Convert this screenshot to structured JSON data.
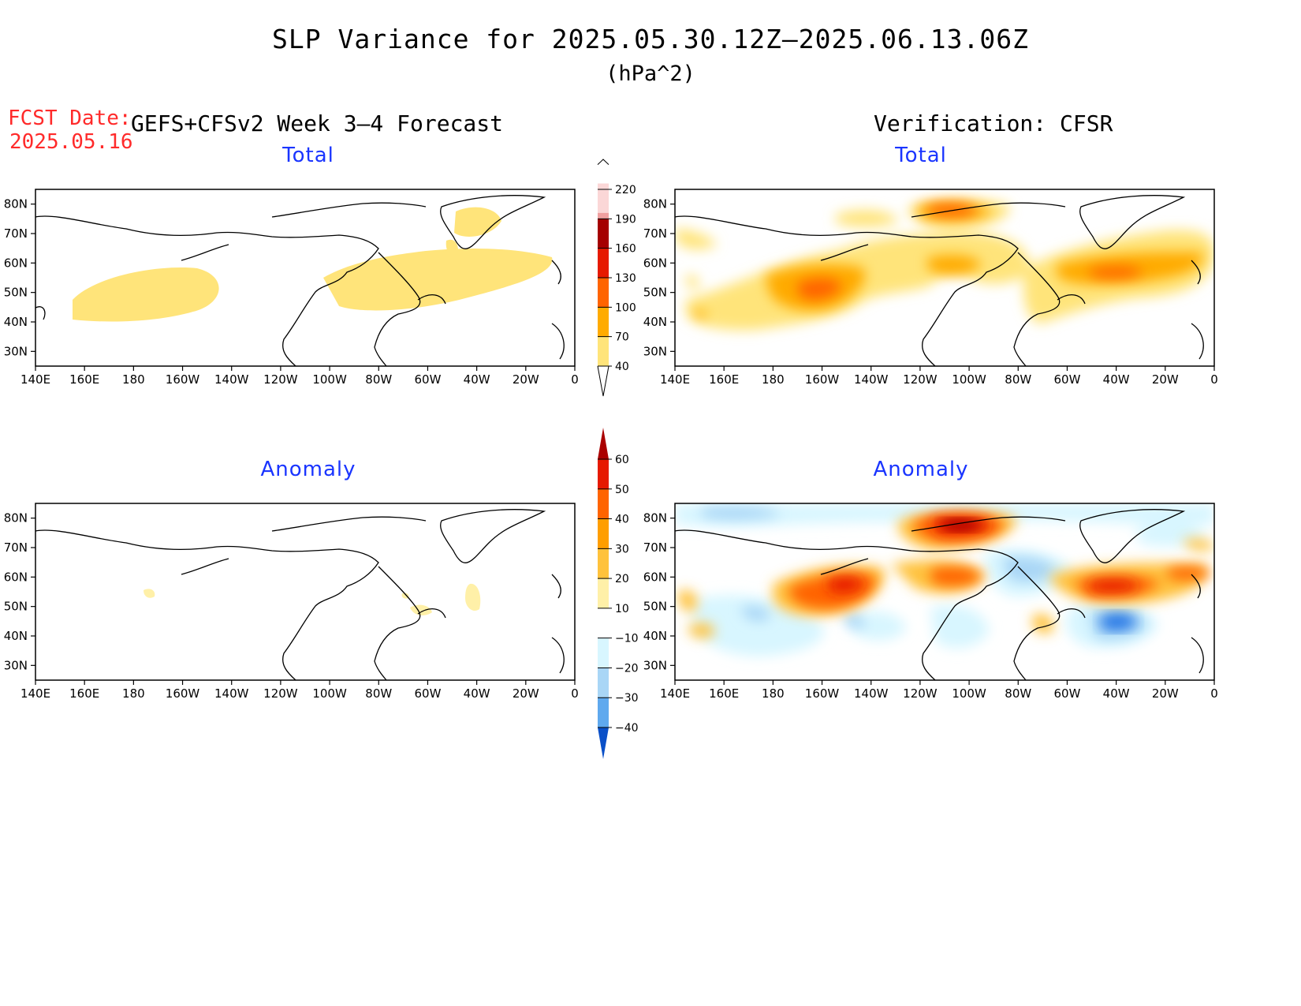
{
  "title": "SLP Variance for 2025.05.30.12Z–2025.06.13.06Z",
  "units": "(hPa^2)",
  "forecast_label": "FCST Date:",
  "forecast_date": "2025.05.16",
  "forecast_source": "GEFS+CFSv2 Week 3–4 Forecast",
  "verification_source": "Verification: CFSR",
  "panels": {
    "fcst_total": {
      "title": "Total"
    },
    "verif_total": {
      "title": "Total"
    },
    "fcst_anomaly": {
      "title": "Anomaly"
    },
    "verif_anomaly": {
      "title": "Anomaly"
    }
  },
  "axes": {
    "lon_labels": [
      "140E",
      "160E",
      "180",
      "160W",
      "140W",
      "120W",
      "100W",
      "80W",
      "60W",
      "40W",
      "20W",
      "0"
    ],
    "lat_labels": [
      "80N",
      "70N",
      "60N",
      "50N",
      "40N",
      "30N"
    ]
  },
  "colorbars": {
    "total": {
      "levels": [
        "40",
        "70",
        "100",
        "130",
        "160",
        "190",
        "220"
      ],
      "colors": [
        "#ffe47a",
        "#ffab00",
        "#ff6400",
        "#e61a00",
        "#a50000",
        "#f0a0a0",
        "#fbd7d7"
      ]
    },
    "anomaly": {
      "levels": [
        "60",
        "50",
        "40",
        "30",
        "20",
        "10",
        "−10",
        "−20",
        "−30",
        "−40"
      ],
      "colors": [
        "#aa0000",
        "#e61a00",
        "#ff6400",
        "#ff9e00",
        "#ffc23c",
        "#fff0a8",
        "#ffffff",
        "#d8f6ff",
        "#a9d6f6",
        "#5fa9ee",
        "#2b7ae6",
        "#0a50c8"
      ]
    }
  },
  "chart_data": [
    {
      "type": "heatmap",
      "panel": "GEFS+CFSv2 Week 3-4 Forecast – Total",
      "units": "hPa^2",
      "regions": [
        {
          "lon": [
            160,
            215
          ],
          "lat": [
            40,
            55
          ],
          "value_range": [
            40,
            70
          ]
        },
        {
          "lon": [
            258,
            342
          ],
          "lat": [
            42,
            63
          ],
          "value_range": [
            40,
            70
          ]
        },
        {
          "lon": [
            317,
            338
          ],
          "lat": [
            68,
            77
          ],
          "value_range": [
            40,
            70
          ]
        }
      ]
    },
    {
      "type": "heatmap",
      "panel": "Verification: CFSR – Total",
      "units": "hPa^2",
      "regions": [
        {
          "lon": [
            145,
            245
          ],
          "lat": [
            38,
            60
          ],
          "value_range": [
            40,
            70
          ]
        },
        {
          "lon": [
            185,
            215
          ],
          "lat": [
            44,
            58
          ],
          "value_range": [
            70,
            130
          ]
        },
        {
          "lon": [
            235,
            290
          ],
          "lat": [
            50,
            62
          ],
          "value_range": [
            40,
            100
          ]
        },
        {
          "lon": [
            240,
            295
          ],
          "lat": [
            70,
            80
          ],
          "value_range": [
            70,
            160
          ]
        },
        {
          "lon": [
            290,
            360
          ],
          "lat": [
            40,
            66
          ],
          "value_range": [
            40,
            100
          ]
        }
      ]
    },
    {
      "type": "heatmap",
      "panel": "GEFS+CFSv2 Week 3-4 Forecast – Anomaly",
      "units": "hPa^2",
      "regions": [
        {
          "lon": [
            178,
            182
          ],
          "lat": [
            53,
            56
          ],
          "value_range": [
            10,
            20
          ]
        },
        {
          "lon": [
            285,
            300
          ],
          "lat": [
            47,
            52
          ],
          "value_range": [
            10,
            20
          ]
        },
        {
          "lon": [
            312,
            320
          ],
          "lat": [
            48,
            58
          ],
          "value_range": [
            10,
            20
          ]
        }
      ]
    },
    {
      "type": "heatmap",
      "panel": "Verification: CFSR – Anomaly",
      "units": "hPa^2",
      "regions": [
        {
          "lon": [
            185,
            215
          ],
          "lat": [
            47,
            62
          ],
          "value_range": [
            20,
            50
          ]
        },
        {
          "lon": [
            240,
            290
          ],
          "lat": [
            72,
            80
          ],
          "value_range": [
            30,
            60
          ]
        },
        {
          "lon": [
            235,
            255
          ],
          "lat": [
            55,
            63
          ],
          "value_range": [
            20,
            40
          ]
        },
        {
          "lon": [
            300,
            360
          ],
          "lat": [
            52,
            63
          ],
          "value_range": [
            20,
            50
          ]
        },
        {
          "lon": [
            310,
            330
          ],
          "lat": [
            38,
            50
          ],
          "value_range": [
            -40,
            -20
          ]
        },
        {
          "lon": [
            265,
            290
          ],
          "lat": [
            55,
            63
          ],
          "value_range": [
            -20,
            -10
          ]
        },
        {
          "lon": [
            145,
            280
          ],
          "lat": [
            79,
            83
          ],
          "value_range": [
            -20,
            -10
          ]
        }
      ]
    }
  ]
}
